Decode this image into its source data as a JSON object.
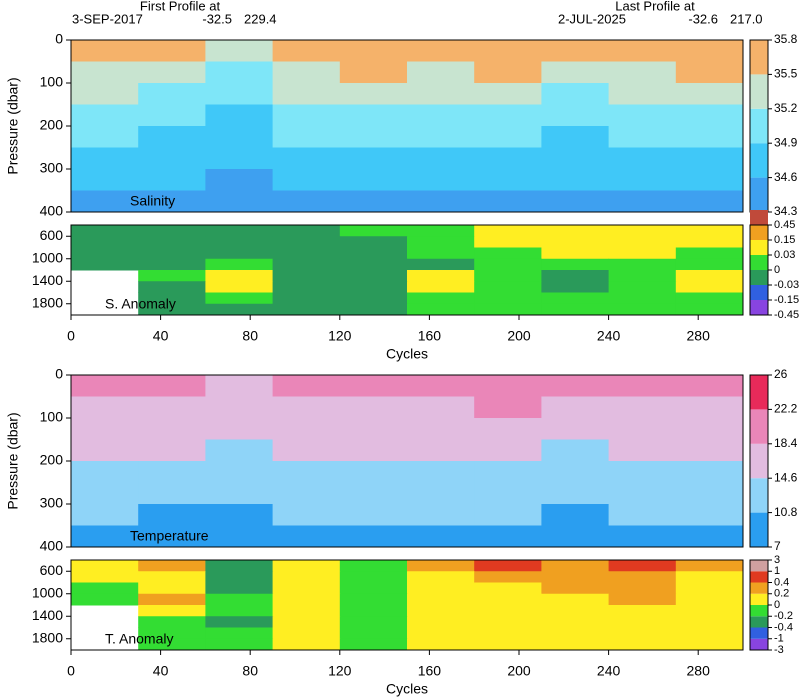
{
  "header": {
    "first_title": "First Profile at",
    "first_date": "3-SEP-2017",
    "first_lat": "-32.5",
    "first_lon": "229.4",
    "last_title": "Last Profile at",
    "last_date": "2-JUL-2025",
    "last_lat": "-32.6",
    "last_lon": "217.0"
  },
  "chart_data": [
    {
      "type": "heatmap",
      "label": "Salinity",
      "ylabel": "Pressure (dbar)",
      "xlim": [
        0,
        300
      ],
      "ylim": [
        400,
        0
      ],
      "yticks": [
        0,
        100,
        200,
        300,
        400
      ],
      "x": [
        15,
        45,
        75,
        105,
        135,
        165,
        195,
        225,
        255,
        285
      ],
      "y": [
        25,
        75,
        125,
        175,
        225,
        275,
        325,
        375
      ],
      "values": [
        [
          35.6,
          35.5,
          35.3,
          35.6,
          35.7,
          35.6,
          35.7,
          35.5,
          35.6,
          35.7
        ],
        [
          35.4,
          35.3,
          35.1,
          35.4,
          35.5,
          35.4,
          35.5,
          35.3,
          35.4,
          35.5
        ],
        [
          35.2,
          35.1,
          34.9,
          35.2,
          35.3,
          35.2,
          35.2,
          35.1,
          35.2,
          35.3
        ],
        [
          35.0,
          34.95,
          34.8,
          35.05,
          35.1,
          35.05,
          35.05,
          35.0,
          35.05,
          35.1
        ],
        [
          34.9,
          34.85,
          34.7,
          34.9,
          34.95,
          34.9,
          34.9,
          34.85,
          34.9,
          34.95
        ],
        [
          34.75,
          34.7,
          34.6,
          34.75,
          34.8,
          34.75,
          34.75,
          34.7,
          34.75,
          34.8
        ],
        [
          34.6,
          34.6,
          34.5,
          34.6,
          34.65,
          34.6,
          34.6,
          34.6,
          34.6,
          34.65
        ],
        [
          34.5,
          34.45,
          34.4,
          34.5,
          34.5,
          34.5,
          34.5,
          34.45,
          34.5,
          34.5
        ]
      ],
      "colorbar": {
        "scale": "linear",
        "ticks": [
          34.3,
          34.6,
          34.9,
          35.2,
          35.5,
          35.8
        ],
        "colors": [
          "#3ea0f0",
          "#40c8f8",
          "#7ee6f8",
          "#c8e4d0",
          "#f5b26a"
        ]
      }
    },
    {
      "type": "heatmap",
      "label": "S. Anomaly",
      "xlabel": "Cycles",
      "xlim": [
        0,
        300
      ],
      "xticks": [
        0,
        40,
        80,
        120,
        160,
        200,
        240,
        280
      ],
      "ylim": [
        2000,
        400
      ],
      "yticks": [
        600,
        1000,
        1400,
        1800
      ],
      "x": [
        15,
        45,
        75,
        105,
        135,
        165,
        195,
        225,
        255,
        285
      ],
      "y": [
        500,
        700,
        900,
        1100,
        1300,
        1500,
        1700,
        1900
      ],
      "values": [
        [
          -0.01,
          -0.02,
          -0.02,
          -0.01,
          0.01,
          0.02,
          0.08,
          0.1,
          0.08,
          0.06
        ],
        [
          -0.02,
          -0.02,
          -0.02,
          -0.02,
          -0.01,
          0.01,
          0.05,
          0.08,
          0.06,
          0.05
        ],
        [
          -0.02,
          -0.01,
          -0.02,
          -0.02,
          -0.01,
          0,
          0.02,
          0.03,
          0.03,
          0.02
        ],
        [
          -0.01,
          -0.01,
          0.02,
          -0.02,
          -0.01,
          -0.01,
          0.01,
          0.01,
          0.02,
          0.02
        ],
        [
          null,
          0.01,
          0.04,
          -0.01,
          -0.02,
          0.04,
          0.01,
          -0.01,
          0.02,
          0.04
        ],
        [
          null,
          -0.01,
          0.04,
          -0.02,
          -0.02,
          0.05,
          0.02,
          -0.01,
          0.02,
          0.04
        ],
        [
          null,
          -0.02,
          0.01,
          -0.02,
          -0.02,
          0.02,
          0.01,
          0.01,
          0.02,
          0.02
        ],
        [
          null,
          -0.02,
          -0.01,
          -0.02,
          -0.02,
          0.01,
          0.01,
          0.01,
          0.01,
          0.01
        ]
      ],
      "colorbar": {
        "scale": "index",
        "ticks": [
          -0.45,
          -0.15,
          -0.03,
          0,
          0.03,
          0.15,
          0.45
        ],
        "colors": [
          "#8844e0",
          "#3060e0",
          "#2a9a5a",
          "#33dd33",
          "#ffee22",
          "#f0a020",
          "#c04a3a"
        ]
      }
    },
    {
      "type": "heatmap",
      "label": "Temperature",
      "ylabel": "Pressure (dbar)",
      "xlim": [
        0,
        300
      ],
      "ylim": [
        400,
        0
      ],
      "yticks": [
        0,
        100,
        200,
        300,
        400
      ],
      "x": [
        15,
        45,
        75,
        105,
        135,
        165,
        195,
        225,
        255,
        285
      ],
      "y": [
        25,
        75,
        125,
        175,
        225,
        275,
        325,
        375
      ],
      "values": [
        [
          21,
          20,
          17,
          21,
          19,
          21,
          22,
          20,
          21,
          21
        ],
        [
          18,
          18,
          16,
          18,
          18,
          18,
          19,
          17,
          18,
          18
        ],
        [
          16.5,
          16.5,
          15,
          16.5,
          16.5,
          16.5,
          17,
          16,
          16.5,
          16.5
        ],
        [
          15.5,
          15,
          14,
          15.5,
          15,
          15,
          15.5,
          14.5,
          15,
          15
        ],
        [
          14,
          14,
          12.5,
          14,
          14,
          14,
          14,
          13.5,
          14,
          14
        ],
        [
          12.5,
          12.5,
          11.5,
          12.5,
          12.5,
          12.5,
          12.5,
          12,
          12.5,
          12.5
        ],
        [
          11,
          10.5,
          10,
          11,
          11,
          11,
          11,
          10.5,
          11,
          11
        ],
        [
          9.5,
          9,
          9,
          9.5,
          9.5,
          9.5,
          9.5,
          9,
          9.5,
          9.5
        ]
      ],
      "colorbar": {
        "scale": "linear",
        "ticks": [
          7,
          10.8,
          14.6,
          18.4,
          22.2,
          26
        ],
        "colors": [
          "#2a9ef0",
          "#8fd4f8",
          "#e2bce0",
          "#ea86b8",
          "#e82a5a"
        ]
      }
    },
    {
      "type": "heatmap",
      "label": "T. Anomaly",
      "xlabel": "Cycles",
      "xlim": [
        0,
        300
      ],
      "xticks": [
        0,
        40,
        80,
        120,
        160,
        200,
        240,
        280
      ],
      "ylim": [
        2000,
        400
      ],
      "yticks": [
        600,
        1000,
        1400,
        1800
      ],
      "x": [
        15,
        45,
        75,
        105,
        135,
        165,
        195,
        225,
        255,
        285
      ],
      "y": [
        500,
        700,
        900,
        1100,
        1300,
        1500,
        1700,
        1900
      ],
      "values": [
        [
          0.1,
          0.3,
          -0.3,
          0.1,
          -0.1,
          0.3,
          0.5,
          0.3,
          0.5,
          0.3
        ],
        [
          0.1,
          0.1,
          -0.3,
          0.1,
          -0.1,
          0.1,
          0.3,
          0.3,
          0.3,
          0.1
        ],
        [
          -0.1,
          0.1,
          -0.3,
          0.1,
          -0.1,
          0.1,
          0.1,
          0.3,
          0.3,
          0.1
        ],
        [
          -0.1,
          0.3,
          -0.1,
          0.1,
          -0.1,
          0.1,
          0.1,
          0.1,
          0.3,
          0.1
        ],
        [
          null,
          0.1,
          -0.1,
          0.1,
          -0.1,
          0.1,
          0.1,
          0.1,
          0.1,
          0.1
        ],
        [
          null,
          -0.1,
          -0.3,
          0.1,
          -0.1,
          0.1,
          0.1,
          0.1,
          0.1,
          0.1
        ],
        [
          null,
          -0.1,
          -0.1,
          0.1,
          -0.1,
          0.1,
          0.1,
          0.1,
          0.1,
          0.1
        ],
        [
          null,
          -0.1,
          -0.1,
          0.1,
          -0.1,
          0.1,
          0.1,
          0.1,
          0.1,
          0.1
        ]
      ],
      "colorbar": {
        "scale": "index",
        "ticks": [
          -3,
          -1,
          -0.4,
          -0.2,
          0,
          0.2,
          0.4,
          1,
          3
        ],
        "colors": [
          "#8844e0",
          "#3060e0",
          "#2a9a5a",
          "#33dd33",
          "#ffee22",
          "#f0a020",
          "#e03a20",
          "#d0a0a0"
        ]
      }
    }
  ]
}
